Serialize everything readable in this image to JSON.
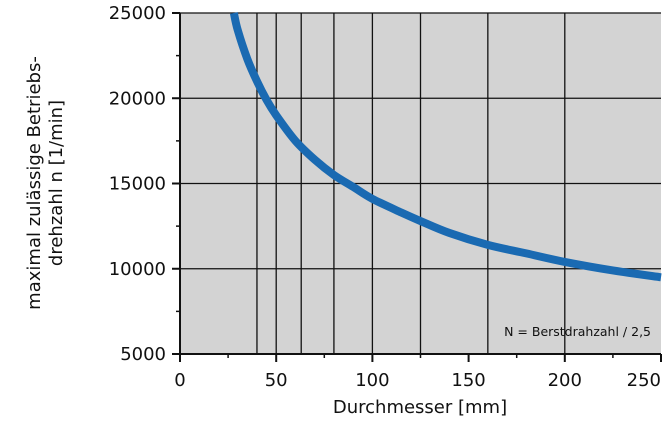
{
  "chart_data": {
    "type": "line",
    "title": "",
    "xlabel": "Durchmesser [mm]",
    "ylabel_lines": [
      "maximal zulässige Betriebs-",
      "drehzahl n [1/min]"
    ],
    "xlim": [
      0,
      250
    ],
    "ylim": [
      5000,
      25000
    ],
    "x_ticks": [
      0,
      50,
      100,
      150,
      200,
      250
    ],
    "y_ticks": [
      5000,
      10000,
      15000,
      20000,
      25000
    ],
    "x_ticks_minor": [
      25,
      75,
      125,
      175,
      225
    ],
    "y_ticks_minor": [
      7500,
      12500,
      17500,
      22500
    ],
    "v_gridlines": [
      40,
      50,
      63,
      80,
      100,
      125,
      160,
      200
    ],
    "h_gridlines": [
      10000,
      15000,
      20000,
      25000
    ],
    "grid": true,
    "note": "N = Berstdrahzahl / 2,5",
    "series": [
      {
        "color": "#1a6ab2",
        "x": [
          28,
          30,
          35,
          40,
          45,
          50,
          60,
          70,
          80,
          90,
          100,
          115,
          125,
          140,
          160,
          180,
          200,
          225,
          250
        ],
        "y": [
          25000,
          24000,
          22300,
          21000,
          19900,
          19000,
          17500,
          16400,
          15500,
          14800,
          14100,
          13300,
          12800,
          12100,
          11400,
          10900,
          10400,
          9900,
          9500
        ]
      }
    ],
    "plot_background": "#d3d3d3",
    "line_color": "#1a6ab2"
  }
}
